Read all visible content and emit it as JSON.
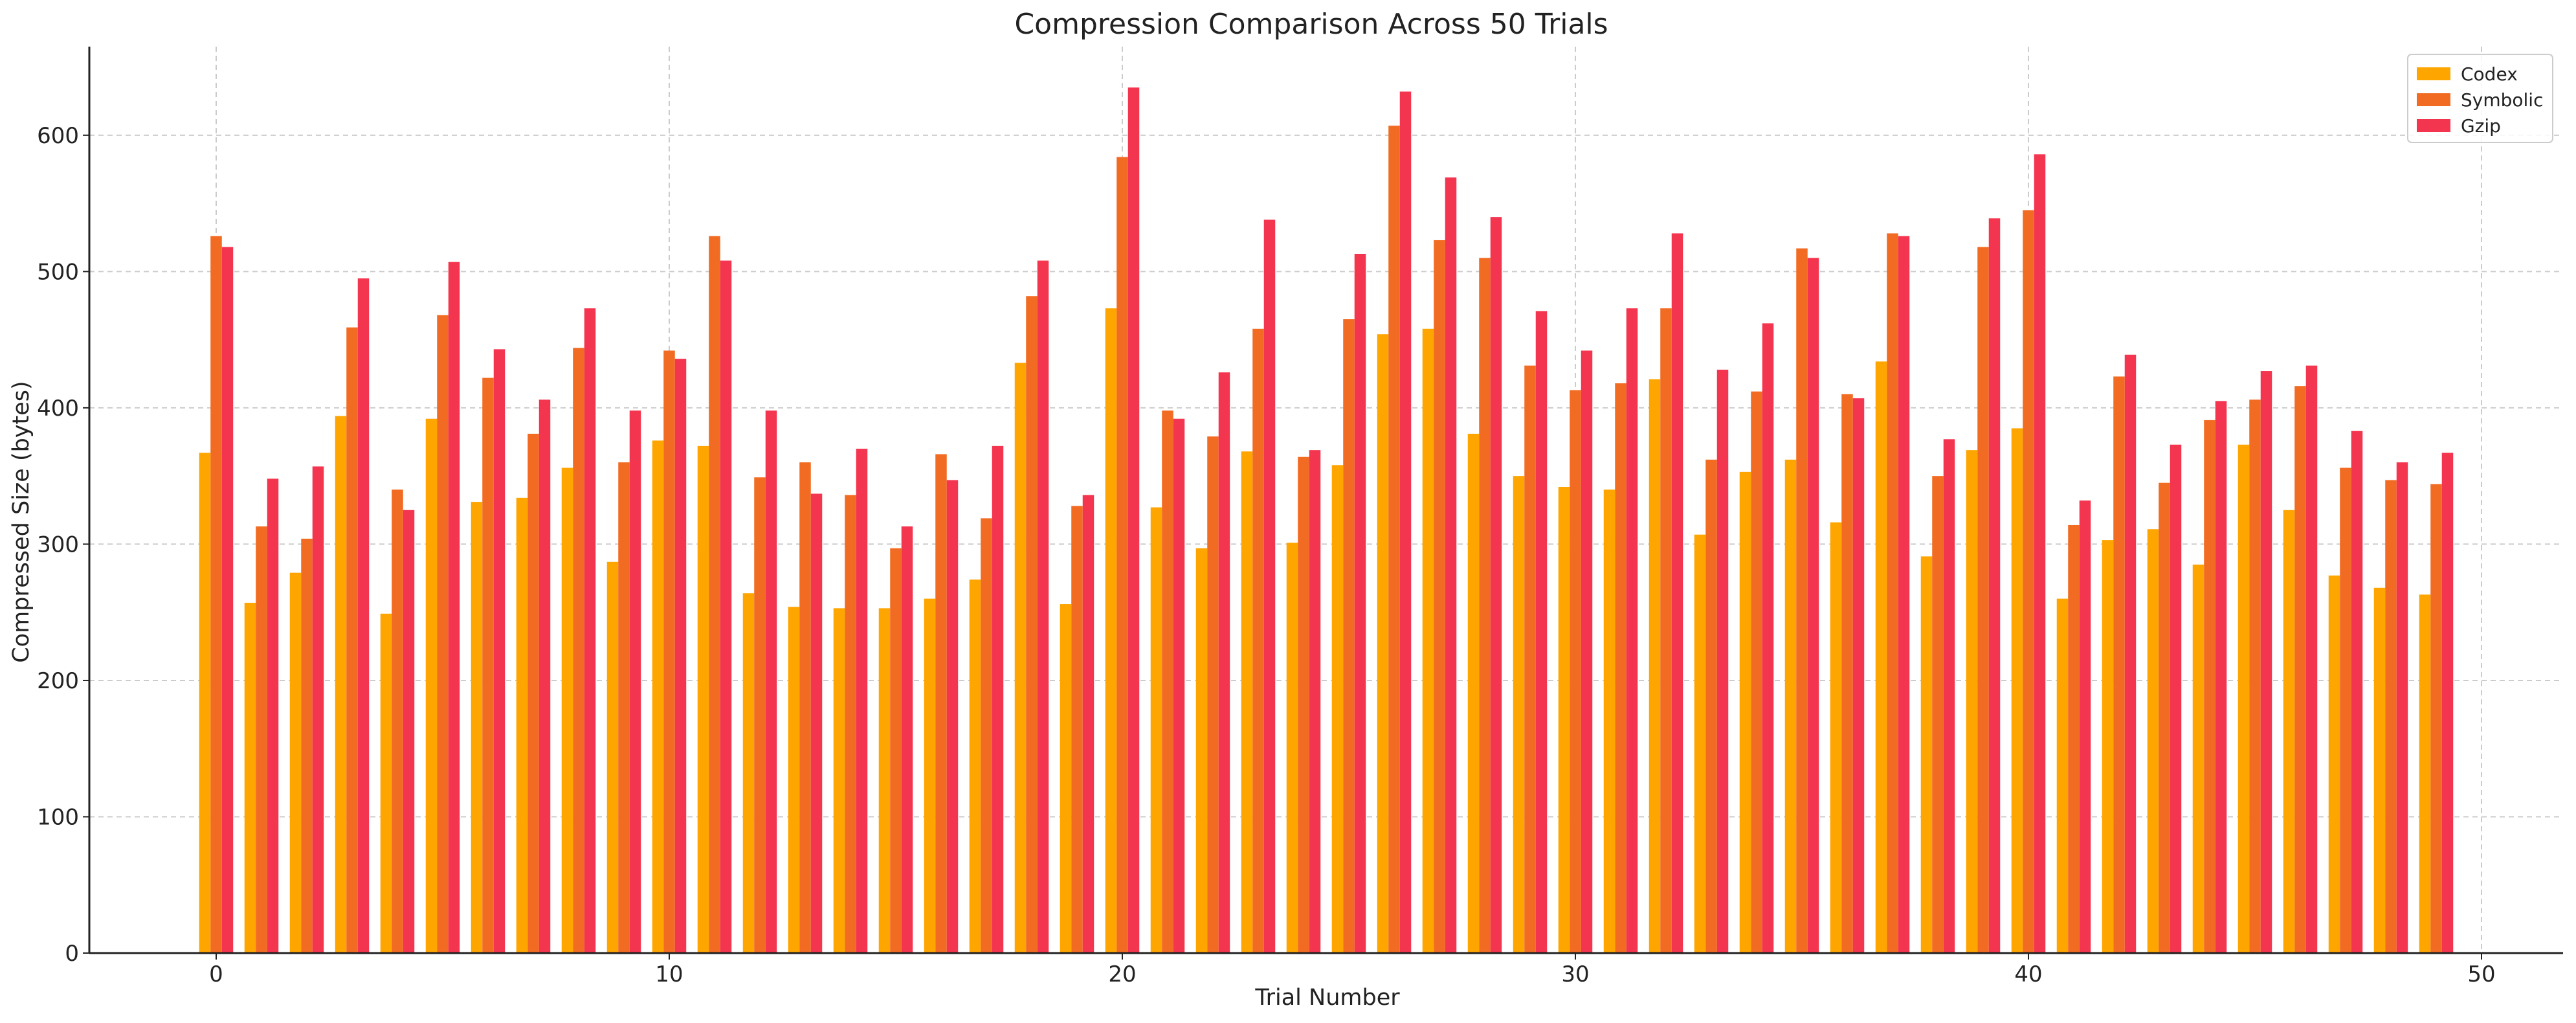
{
  "chart_data": {
    "type": "bar",
    "title": "Compression Comparison Across 50 Trials",
    "xlabel": "Trial Number",
    "ylabel": "Compressed Size (bytes)",
    "xlim": [
      -2.8,
      51.8
    ],
    "ylim": [
      0,
      665
    ],
    "xticks": [
      0,
      10,
      20,
      30,
      40,
      50
    ],
    "yticks": [
      0,
      100,
      200,
      300,
      400,
      500,
      600
    ],
    "grid": true,
    "legend_position": "top-right",
    "x": [
      0,
      1,
      2,
      3,
      4,
      5,
      6,
      7,
      8,
      9,
      10,
      11,
      12,
      13,
      14,
      15,
      16,
      17,
      18,
      19,
      20,
      21,
      22,
      23,
      24,
      25,
      26,
      27,
      28,
      29,
      30,
      31,
      32,
      33,
      34,
      35,
      36,
      37,
      38,
      39,
      40,
      41,
      42,
      43,
      44,
      45,
      46,
      47,
      48,
      49
    ],
    "series": [
      {
        "name": "Codex",
        "color": "#ffa500",
        "values": [
          367,
          257,
          279,
          394,
          249,
          392,
          331,
          334,
          356,
          287,
          376,
          372,
          264,
          254,
          253,
          253,
          260,
          274,
          433,
          256,
          473,
          327,
          297,
          368,
          301,
          358,
          454,
          458,
          381,
          350,
          342,
          340,
          421,
          307,
          353,
          362,
          316,
          434,
          291,
          369,
          385,
          260,
          303,
          311,
          285,
          373,
          325,
          277,
          268,
          263
        ]
      },
      {
        "name": "Symbolic",
        "color": "#f26b22",
        "values": [
          526,
          313,
          304,
          459,
          340,
          468,
          422,
          381,
          444,
          360,
          442,
          526,
          349,
          360,
          336,
          297,
          366,
          319,
          482,
          328,
          584,
          398,
          379,
          458,
          364,
          465,
          607,
          523,
          510,
          431,
          413,
          418,
          473,
          362,
          412,
          517,
          410,
          528,
          350,
          518,
          545,
          314,
          423,
          345,
          391,
          406,
          416,
          356,
          347,
          344
        ]
      },
      {
        "name": "Gzip",
        "color": "#f4354f",
        "values": [
          518,
          348,
          357,
          495,
          325,
          507,
          443,
          406,
          473,
          398,
          436,
          508,
          398,
          337,
          370,
          313,
          347,
          372,
          508,
          336,
          635,
          392,
          426,
          538,
          369,
          513,
          632,
          569,
          540,
          471,
          442,
          473,
          528,
          428,
          462,
          510,
          407,
          526,
          377,
          539,
          586,
          332,
          439,
          373,
          405,
          427,
          431,
          383,
          360,
          367
        ]
      }
    ]
  }
}
